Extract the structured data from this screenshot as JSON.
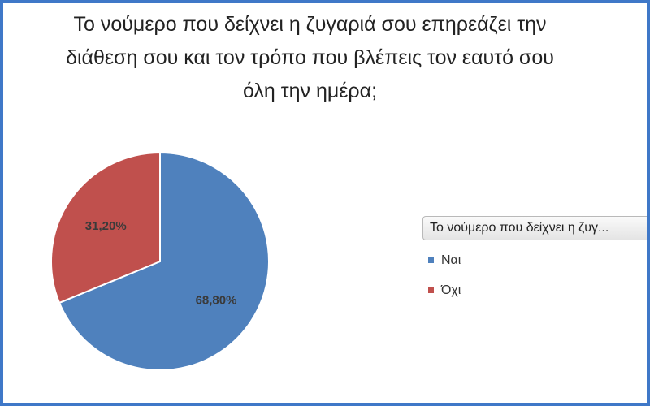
{
  "chart_data": {
    "type": "pie",
    "title_lines": [
      "Το νούμερο που δείχνει η ζυγαριά σου επηρεάζει την",
      "διάθεση σου και τον τρόπο που βλέπεις τον εαυτό σου",
      "όλη την ημέρα;"
    ],
    "legend_title": "Το νούμερο που δείχνει η ζυγ...",
    "categories": [
      "Ναι",
      "Όχι"
    ],
    "values": [
      68.8,
      31.2
    ],
    "data_labels": [
      "68,80%",
      "31,20%"
    ],
    "colors": [
      "#4f81bd",
      "#c0504d"
    ],
    "legend_position": "right"
  }
}
